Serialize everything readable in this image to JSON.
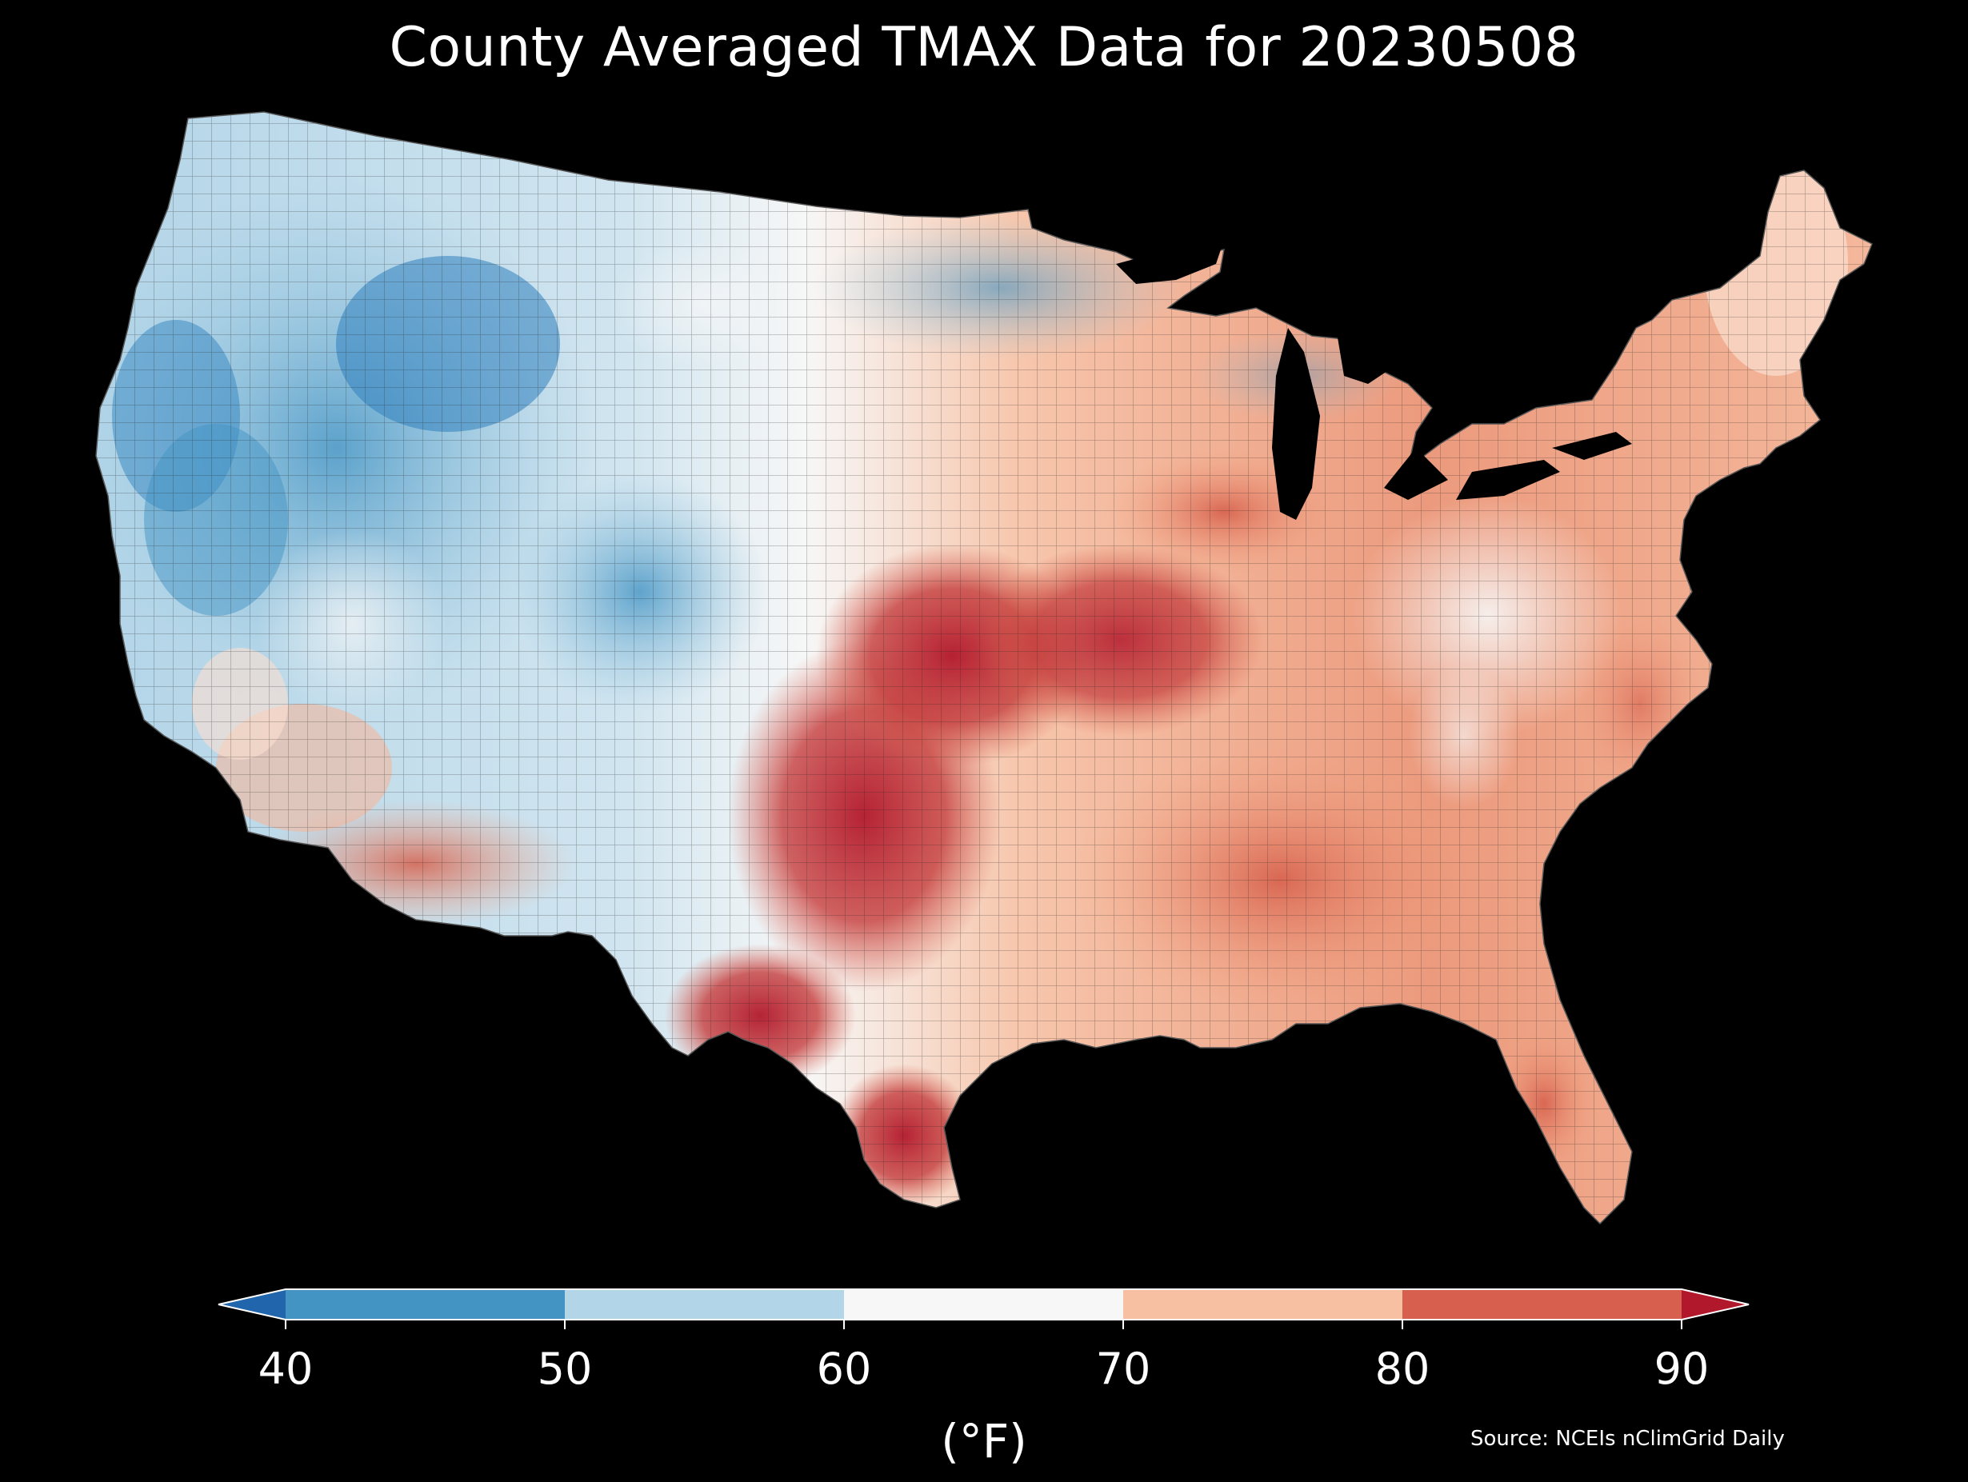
{
  "title": "County Averaged TMAX Data for 20230508",
  "source": "Source: NCEIs nClimGrid Daily",
  "colorbar": {
    "unit_label": "(°F)",
    "ticks": [
      "40",
      "50",
      "60",
      "70",
      "80",
      "90"
    ],
    "bins": [
      {
        "range": "<40",
        "color": "#2166ac"
      },
      {
        "range": "40-50",
        "color": "#4393c3"
      },
      {
        "range": "50-60",
        "color": "#b3d5e8"
      },
      {
        "range": "60-70",
        "color": "#f7f7f7"
      },
      {
        "range": "70-80",
        "color": "#f7c0a3"
      },
      {
        "range": "80-90",
        "color": "#d6604d"
      },
      {
        "range": ">90",
        "color": "#b2182b"
      }
    ],
    "extend": "both"
  },
  "map": {
    "region": "Contiguous United States",
    "units": "counties",
    "background": "#000000",
    "border_color": "#333333"
  }
}
